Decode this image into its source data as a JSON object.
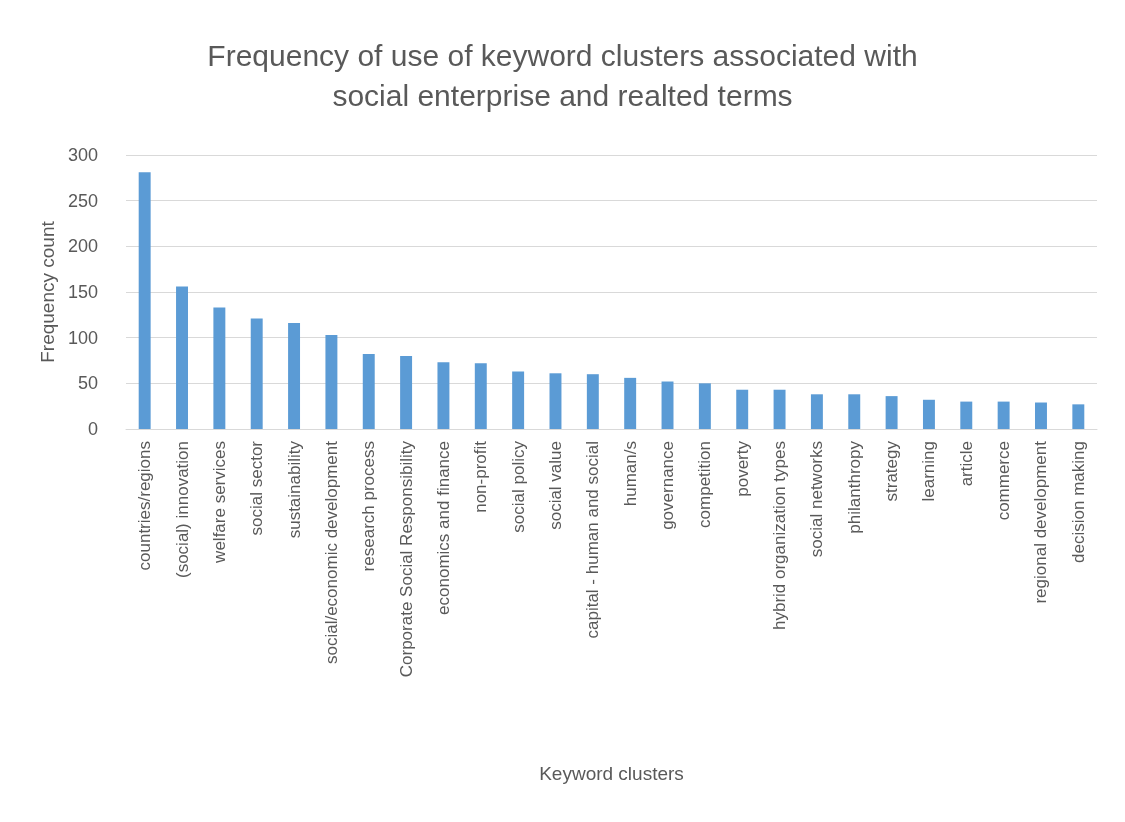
{
  "chart_data": {
    "type": "bar",
    "title": "Frequency of use of keyword clusters associated with\nsocial enterprise and realted terms",
    "xlabel": "Keyword clusters",
    "ylabel": "Frequency count",
    "categories": [
      "countries/regions",
      "(social) innovation",
      "welfare services",
      "social sector",
      "sustainability",
      "social/economic development",
      "research process",
      "Corporate Social Responsibility",
      "economics and finance",
      "non-profit",
      "social policy",
      "social value",
      "capital - human and social",
      "human/s",
      "governance",
      "competition",
      "poverty",
      "hybrid organization types",
      "social networks",
      "philanthropy",
      "strategy",
      "learning",
      "article",
      "commerce",
      "regional development",
      "decision making"
    ],
    "values": [
      281,
      156,
      133,
      121,
      116,
      103,
      82,
      80,
      73,
      72,
      63,
      61,
      60,
      56,
      52,
      50,
      43,
      43,
      38,
      38,
      36,
      32,
      30,
      30,
      29,
      27
    ],
    "color": "#5b9bd5",
    "ylim": [
      0,
      300
    ],
    "yticks": [
      0,
      50,
      100,
      150,
      200,
      250,
      300
    ],
    "grid": "y"
  }
}
